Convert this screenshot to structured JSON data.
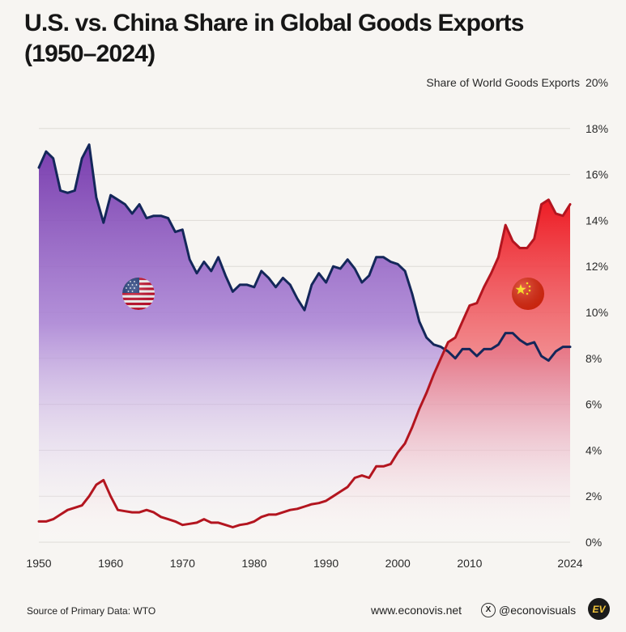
{
  "title_lines": [
    "U.S. vs. China Share in Global Goods Exports",
    "(1950–2024)"
  ],
  "footer": {
    "source": "Source of Primary Data: WTO",
    "website": "www.econovis.net",
    "social": "@econovisuals",
    "logo_text": "EV"
  },
  "colors": {
    "us_line": "#14275a",
    "china_line": "#b3151f",
    "us_fill": "#7d3fb1",
    "china_fill": "#ec1c24"
  },
  "icons": {
    "us": "us-flag-icon",
    "china": "china-flag-icon",
    "social": "x-icon"
  },
  "chart_data": {
    "type": "area",
    "title": "U.S. vs. China Share in Global Goods Exports (1950–2024)",
    "ylabel": "Share of World Goods  Exports",
    "y_unit": "%",
    "ylim": [
      0,
      20
    ],
    "xlim": [
      1950,
      2024
    ],
    "y_ticks": [
      0,
      2,
      4,
      6,
      8,
      10,
      12,
      14,
      16,
      18,
      20
    ],
    "y_tick_labels": [
      "0%",
      "2%",
      "4%",
      "6%",
      "8%",
      "10%",
      "12%",
      "14%",
      "16%",
      "18%",
      "20%"
    ],
    "x_ticks": [
      1950,
      1960,
      1970,
      1980,
      1990,
      2000,
      2010,
      2024
    ],
    "x_tick_labels": [
      "1950",
      "1960",
      "1970",
      "1980",
      "1990",
      "2000",
      "2010",
      "2024"
    ],
    "grid": true,
    "legend": "none (flag icons mark series)",
    "x": [
      1950,
      1951,
      1952,
      1953,
      1954,
      1955,
      1956,
      1957,
      1958,
      1959,
      1960,
      1961,
      1962,
      1963,
      1964,
      1965,
      1966,
      1967,
      1968,
      1969,
      1970,
      1971,
      1972,
      1973,
      1974,
      1975,
      1976,
      1977,
      1978,
      1979,
      1980,
      1981,
      1982,
      1983,
      1984,
      1985,
      1986,
      1987,
      1988,
      1989,
      1990,
      1991,
      1992,
      1993,
      1994,
      1995,
      1996,
      1997,
      1998,
      1999,
      2000,
      2001,
      2002,
      2003,
      2004,
      2005,
      2006,
      2007,
      2008,
      2009,
      2010,
      2011,
      2012,
      2013,
      2014,
      2015,
      2016,
      2017,
      2018,
      2019,
      2020,
      2021,
      2022,
      2023,
      2024
    ],
    "series": [
      {
        "name": "U.S.",
        "icon": "us-flag-icon",
        "values": [
          16.3,
          17.0,
          16.7,
          15.3,
          15.2,
          15.3,
          16.7,
          17.3,
          15.0,
          13.9,
          15.1,
          14.9,
          14.7,
          14.3,
          14.7,
          14.1,
          14.2,
          14.2,
          14.1,
          13.5,
          13.6,
          12.3,
          11.7,
          12.2,
          11.8,
          12.4,
          11.6,
          10.9,
          11.2,
          11.2,
          11.1,
          11.8,
          11.5,
          11.1,
          11.5,
          11.2,
          10.6,
          10.1,
          11.2,
          11.7,
          11.3,
          12.0,
          11.9,
          12.3,
          11.9,
          11.3,
          11.6,
          12.4,
          12.4,
          12.2,
          12.1,
          11.8,
          10.8,
          9.6,
          8.9,
          8.6,
          8.5,
          8.3,
          8.0,
          8.4,
          8.4,
          8.1,
          8.4,
          8.4,
          8.6,
          9.1,
          9.1,
          8.8,
          8.6,
          8.7,
          8.1,
          7.9,
          8.3,
          8.5,
          8.5
        ]
      },
      {
        "name": "China",
        "icon": "china-flag-icon",
        "values": [
          0.9,
          0.9,
          1.0,
          1.2,
          1.4,
          1.5,
          1.6,
          2.0,
          2.5,
          2.7,
          2.0,
          1.4,
          1.35,
          1.3,
          1.3,
          1.4,
          1.3,
          1.1,
          1.0,
          0.9,
          0.75,
          0.8,
          0.85,
          1.0,
          0.85,
          0.85,
          0.75,
          0.65,
          0.75,
          0.8,
          0.9,
          1.1,
          1.2,
          1.2,
          1.3,
          1.4,
          1.45,
          1.55,
          1.65,
          1.7,
          1.8,
          2.0,
          2.2,
          2.4,
          2.8,
          2.9,
          2.8,
          3.3,
          3.3,
          3.4,
          3.9,
          4.3,
          5.0,
          5.8,
          6.5,
          7.3,
          8.0,
          8.7,
          8.9,
          9.6,
          10.3,
          10.4,
          11.1,
          11.7,
          12.4,
          13.8,
          13.1,
          12.8,
          12.8,
          13.2,
          14.7,
          14.9,
          14.3,
          14.2,
          14.7
        ]
      }
    ]
  }
}
